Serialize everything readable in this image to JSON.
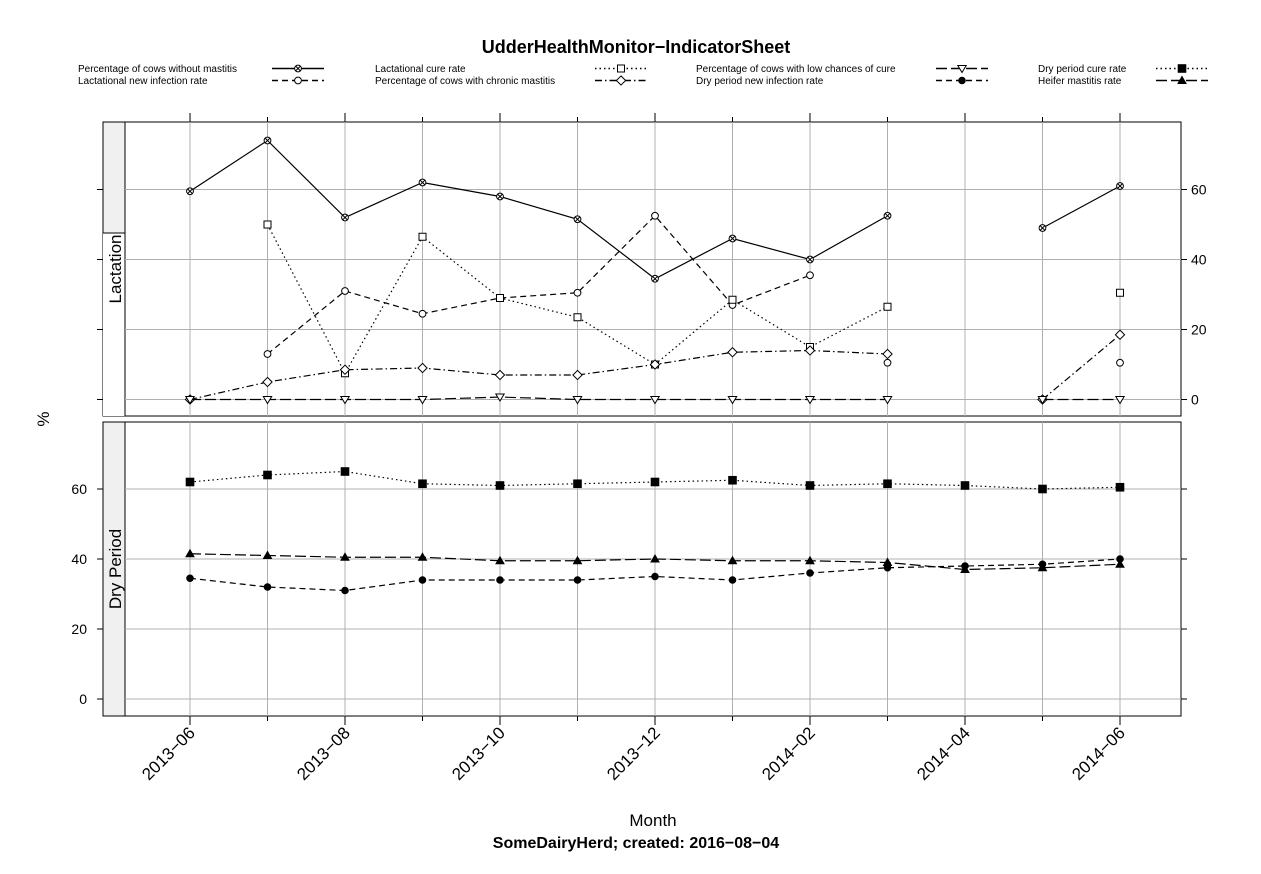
{
  "chart_data": {
    "type": "line",
    "title": "UdderHealthMonitor−IndicatorSheet",
    "subtitle": "SomeDairyHerd; created: 2016−08−04",
    "xlabel": "Month",
    "ylabel": "%",
    "x": [
      "2013-06",
      "2013-07",
      "2013-08",
      "2013-09",
      "2013-10",
      "2013-11",
      "2013-12",
      "2014-01",
      "2014-02",
      "2014-03",
      "2014-04",
      "2014-05",
      "2014-06"
    ],
    "x_tick_labels": [
      "2013−06",
      "2013−08",
      "2013−10",
      "2013−12",
      "2014−02",
      "2014−04",
      "2014−06"
    ],
    "ylim": [
      -5,
      78
    ],
    "y_ticks": [
      0,
      20,
      40,
      60
    ],
    "grid": true,
    "legend_position": "top",
    "panels": [
      {
        "name": "Lactation",
        "series": [
          {
            "name": "Percentage of cows without mastitis",
            "marker": "xcircle",
            "line": "solid",
            "values": [
              59.5,
              74,
              52,
              62,
              58,
              51.5,
              34.5,
              46,
              40,
              52.5,
              null,
              49,
              61
            ]
          },
          {
            "name": "Lactational new infection rate",
            "marker": "circle",
            "line": "dashed",
            "values": [
              null,
              13,
              31,
              24.5,
              29,
              30.5,
              52.5,
              27,
              35.5,
              null,
              null,
              null,
              null
            ]
          },
          {
            "name": "Lactational cure rate",
            "marker": "square",
            "line": "dotted",
            "values": [
              null,
              50,
              7.5,
              46.5,
              29,
              23.5,
              10,
              28.5,
              15,
              26.5,
              null,
              null,
              30.5
            ]
          },
          {
            "name": "Percentage of cows with chronic mastitis",
            "marker": "diamond",
            "line": "dashdot",
            "values": [
              0,
              5,
              8.5,
              9,
              7,
              7,
              10,
              13.5,
              14,
              13,
              null,
              0,
              18.5
            ]
          },
          {
            "name": "Percentage of cows with low chances of cure",
            "marker": "triangle-down",
            "line": "longdash",
            "values": [
              0,
              0,
              0,
              0,
              0.7,
              0,
              0,
              0,
              0,
              0,
              null,
              0,
              0
            ]
          }
        ],
        "extra_points": [
          {
            "series": "Lactational new infection rate",
            "x": "2014-03",
            "value": 10.5
          },
          {
            "series": "Lactational new infection rate",
            "x": "2014-06",
            "value": 10.5
          }
        ]
      },
      {
        "name": "Dry Period",
        "series": [
          {
            "name": "Dry period cure rate",
            "marker": "filled-square",
            "line": "dotted",
            "values": [
              62,
              64,
              65,
              61.5,
              61,
              61.5,
              62,
              62.5,
              61,
              61.5,
              61,
              60,
              60.5
            ]
          },
          {
            "name": "Heifer mastitis rate",
            "marker": "filled-triangle",
            "line": "longdash",
            "values": [
              41.5,
              41,
              40.5,
              40.5,
              39.5,
              39.5,
              40,
              39.5,
              39.5,
              39,
              37,
              37.5,
              38.5
            ]
          },
          {
            "name": "Dry period new infection rate",
            "marker": "filled-circle",
            "line": "dashed",
            "values": [
              34.5,
              32,
              31,
              34,
              34,
              34,
              35,
              34,
              36,
              37.5,
              38,
              38.5,
              40
            ]
          }
        ]
      }
    ]
  },
  "colors": {
    "line": "#000000",
    "grid": "#b0b0b0",
    "strip": "#f0f0f0"
  }
}
